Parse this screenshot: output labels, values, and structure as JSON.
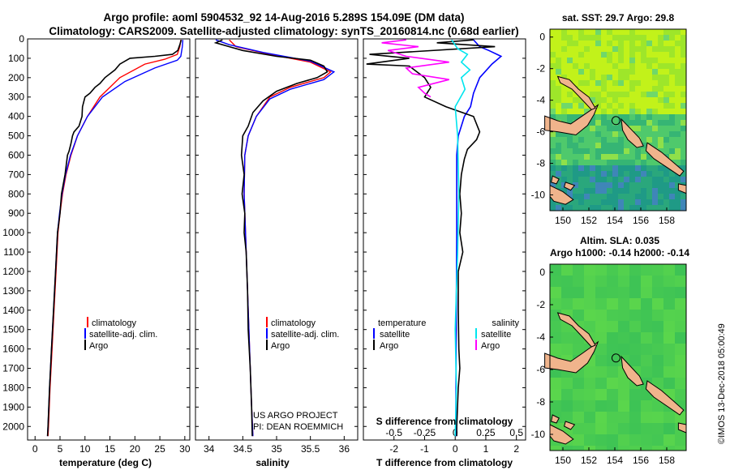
{
  "title_line1": "Argo profile: aoml 5904532_92 14-Aug-2016 5.289S 154.09E (DM data)",
  "title_line2": "Climatology: CARS2009. Satellite-adjusted climatology: synTS_20160814.nc (0.68d earlier)",
  "colors": {
    "climatology": "#ff0000",
    "satellite": "#0000ff",
    "argo": "#000000",
    "sal_sat": "#00e5ee",
    "sal_argo": "#ff00ff",
    "land": "#f0b48c"
  },
  "credits": {
    "project": "US ARGO PROJECT",
    "pi": "PI: DEAN ROEMMICH",
    "stamp": "©IMOS 13-Dec-2018 05:00:49"
  },
  "chart_data": [
    {
      "type": "line",
      "name": "temperature",
      "xlabel": "temperature (deg C)",
      "xlim": [
        -1.5,
        31
      ],
      "xticks": [
        "0",
        "5",
        "10",
        "15",
        "20",
        "25",
        "30"
      ],
      "ylim": [
        0,
        2070
      ],
      "yticks": [
        "0",
        "100",
        "200",
        "300",
        "400",
        "500",
        "600",
        "700",
        "800",
        "900",
        "1000",
        "1100",
        "1200",
        "1300",
        "1400",
        "1500",
        "1600",
        "1700",
        "1800",
        "1900",
        "2000"
      ],
      "legend": [
        "climatology",
        "satellite-adj. clim.",
        "Argo"
      ],
      "series": [
        {
          "name": "climatology",
          "color": "#ff0000",
          "points": [
            [
              29.2,
              5
            ],
            [
              29.0,
              40
            ],
            [
              28.5,
              80
            ],
            [
              26,
              105
            ],
            [
              22,
              130
            ],
            [
              17,
              200
            ],
            [
              13,
              300
            ],
            [
              10.5,
              400
            ],
            [
              8.5,
              500
            ],
            [
              7.2,
              600
            ],
            [
              6.2,
              700
            ],
            [
              5.5,
              800
            ],
            [
              5.0,
              900
            ],
            [
              4.6,
              1000
            ],
            [
              4.2,
              1200
            ],
            [
              3.8,
              1400
            ],
            [
              3.4,
              1600
            ],
            [
              3.0,
              1800
            ],
            [
              2.7,
              2000
            ],
            [
              2.6,
              2050
            ]
          ]
        },
        {
          "name": "satellite-adj. clim.",
          "color": "#0000ff",
          "points": [
            [
              29.6,
              5
            ],
            [
              29.5,
              40
            ],
            [
              29.2,
              90
            ],
            [
              28.5,
              110
            ],
            [
              24,
              150
            ],
            [
              18,
              220
            ],
            [
              13.5,
              300
            ],
            [
              10.5,
              400
            ],
            [
              8.5,
              500
            ],
            [
              7.1,
              600
            ],
            [
              6.1,
              700
            ],
            [
              5.4,
              800
            ],
            [
              4.9,
              900
            ],
            [
              4.5,
              1000
            ],
            [
              4.1,
              1200
            ],
            [
              3.7,
              1400
            ],
            [
              3.3,
              1600
            ],
            [
              2.9,
              1800
            ],
            [
              2.6,
              2000
            ],
            [
              2.5,
              2050
            ]
          ]
        },
        {
          "name": "Argo",
          "color": "#000000",
          "points": [
            [
              29.3,
              5
            ],
            [
              29.0,
              30
            ],
            [
              28.6,
              60
            ],
            [
              27.5,
              80
            ],
            [
              24,
              90
            ],
            [
              19,
              100
            ],
            [
              17,
              130
            ],
            [
              16,
              160
            ],
            [
              14,
              200
            ],
            [
              13,
              230
            ],
            [
              12,
              250
            ],
            [
              11,
              280
            ],
            [
              10,
              300
            ],
            [
              9.5,
              350
            ],
            [
              9.4,
              400
            ],
            [
              8.8,
              450
            ],
            [
              7.8,
              480
            ],
            [
              7.5,
              500
            ],
            [
              7.2,
              540
            ],
            [
              6.8,
              580
            ],
            [
              6.5,
              600
            ],
            [
              6.0,
              700
            ],
            [
              5.3,
              800
            ],
            [
              5.0,
              900
            ],
            [
              4.5,
              1000
            ],
            [
              4.1,
              1200
            ],
            [
              3.7,
              1400
            ],
            [
              3.3,
              1600
            ],
            [
              2.9,
              1800
            ],
            [
              2.6,
              2000
            ],
            [
              2.5,
              2050
            ]
          ]
        }
      ]
    },
    {
      "type": "line",
      "name": "salinity",
      "xlabel": "salinity",
      "xlim": [
        33.8,
        36.2
      ],
      "xticks": [
        "34",
        "34.5",
        "35",
        "35.5",
        "36"
      ],
      "ylim": [
        0,
        2070
      ],
      "legend": [
        "climatology",
        "satellite-adj. clim.",
        "Argo"
      ],
      "series": [
        {
          "name": "climatology",
          "color": "#ff0000",
          "points": [
            [
              34.3,
              5
            ],
            [
              34.4,
              40
            ],
            [
              34.9,
              80
            ],
            [
              35.5,
              120
            ],
            [
              35.8,
              170
            ],
            [
              35.7,
              200
            ],
            [
              35.2,
              250
            ],
            [
              34.9,
              300
            ],
            [
              34.7,
              400
            ],
            [
              34.58,
              500
            ],
            [
              34.53,
              600
            ],
            [
              34.52,
              800
            ],
            [
              34.54,
              1000
            ],
            [
              34.57,
              1300
            ],
            [
              34.6,
              1600
            ],
            [
              34.63,
              1900
            ],
            [
              34.65,
              2050
            ]
          ]
        },
        {
          "name": "satellite-adj. clim.",
          "color": "#0000ff",
          "points": [
            [
              34.1,
              5
            ],
            [
              34.3,
              30
            ],
            [
              34.8,
              70
            ],
            [
              35.5,
              115
            ],
            [
              35.85,
              170
            ],
            [
              35.7,
              210
            ],
            [
              35.2,
              260
            ],
            [
              34.9,
              310
            ],
            [
              34.7,
              400
            ],
            [
              34.58,
              500
            ],
            [
              34.53,
              600
            ],
            [
              34.52,
              800
            ],
            [
              34.54,
              1000
            ],
            [
              34.57,
              1300
            ],
            [
              34.6,
              1600
            ],
            [
              34.63,
              1900
            ],
            [
              34.65,
              2050
            ]
          ]
        },
        {
          "name": "Argo",
          "color": "#000000",
          "points": [
            [
              34.2,
              5
            ],
            [
              34.1,
              20
            ],
            [
              34.3,
              40
            ],
            [
              34.5,
              60
            ],
            [
              35.0,
              90
            ],
            [
              35.5,
              110
            ],
            [
              35.7,
              140
            ],
            [
              35.75,
              170
            ],
            [
              35.6,
              200
            ],
            [
              35.3,
              230
            ],
            [
              35.0,
              270
            ],
            [
              34.8,
              320
            ],
            [
              34.65,
              380
            ],
            [
              34.58,
              450
            ],
            [
              34.5,
              500
            ],
            [
              34.48,
              600
            ],
            [
              34.52,
              700
            ],
            [
              34.49,
              800
            ],
            [
              34.53,
              900
            ],
            [
              34.52,
              1000
            ],
            [
              34.55,
              1100
            ],
            [
              34.57,
              1300
            ],
            [
              34.58,
              1500
            ],
            [
              34.61,
              1700
            ],
            [
              34.63,
              1900
            ],
            [
              34.64,
              2050
            ]
          ]
        }
      ]
    },
    {
      "type": "line",
      "name": "difference from climatology",
      "xlabel": "T difference from climatology",
      "xlim": [
        -3,
        2.3
      ],
      "xticks": [
        "-2",
        "-1",
        "0",
        "1",
        "2"
      ],
      "top_label": "S difference from climatology",
      "top_xlim": [
        -0.75,
        0.575
      ],
      "top_xticks": [
        "-0.5",
        "-0.25",
        "0",
        "0.25",
        "0.5"
      ],
      "ylim": [
        0,
        2070
      ],
      "legend_temperature": {
        "header": "temperature",
        "items": [
          "satellite",
          "Argo"
        ]
      },
      "legend_salinity": {
        "header": "salinity",
        "items": [
          "satellite",
          "Argo"
        ]
      },
      "series": [
        {
          "name": "temperature satellite",
          "color": "#0000ff",
          "points": [
            [
              0.6,
              5
            ],
            [
              0.8,
              40
            ],
            [
              1.1,
              60
            ],
            [
              1.5,
              90
            ],
            [
              1.2,
              130
            ],
            [
              0.8,
              200
            ],
            [
              0.6,
              280
            ],
            [
              0.5,
              350
            ],
            [
              0.3,
              400
            ],
            [
              0.1,
              500
            ],
            [
              0.05,
              600
            ],
            [
              0.05,
              800
            ],
            [
              0.05,
              1000
            ],
            [
              0.04,
              1300
            ],
            [
              0.03,
              1600
            ],
            [
              0.02,
              2050
            ]
          ]
        },
        {
          "name": "temperature Argo",
          "color": "#000000",
          "points": [
            [
              0.6,
              5
            ],
            [
              -0.6,
              20
            ],
            [
              1.3,
              40
            ],
            [
              -2.8,
              80
            ],
            [
              -1.5,
              100
            ],
            [
              -2.9,
              130
            ],
            [
              -1.5,
              140
            ],
            [
              -1.0,
              200
            ],
            [
              -0.8,
              250
            ],
            [
              -1.0,
              300
            ],
            [
              -0.3,
              350
            ],
            [
              0.6,
              400
            ],
            [
              0.8,
              480
            ],
            [
              0.7,
              520
            ],
            [
              0.4,
              570
            ],
            [
              0.3,
              620
            ],
            [
              0.2,
              700
            ],
            [
              0.15,
              800
            ],
            [
              0.2,
              900
            ],
            [
              0.15,
              1000
            ],
            [
              0.25,
              1100
            ],
            [
              0.1,
              1200
            ],
            [
              0.1,
              1400
            ],
            [
              0.12,
              1600
            ],
            [
              0.15,
              1700
            ],
            [
              0.1,
              1800
            ],
            [
              0.05,
              2000
            ],
            [
              0.05,
              2050
            ]
          ]
        },
        {
          "name": "salinity satellite",
          "color": "#00e5ee",
          "points": [
            [
              -0.03,
              5
            ],
            [
              0.02,
              50
            ],
            [
              0.1,
              80
            ],
            [
              0.05,
              120
            ],
            [
              0.12,
              160
            ],
            [
              0.05,
              200
            ],
            [
              0.08,
              260
            ],
            [
              0.0,
              350
            ],
            [
              0.02,
              500
            ],
            [
              0.03,
              800
            ],
            [
              0.02,
              1100
            ],
            [
              0.0,
              1500
            ],
            [
              0.01,
              1800
            ],
            [
              0.0,
              2050
            ]
          ]
        },
        {
          "name": "salinity Argo",
          "color": "#ff00ff",
          "points": [
            [
              -0.4,
              5
            ],
            [
              -0.6,
              20
            ],
            [
              -0.3,
              40
            ],
            [
              -0.55,
              60
            ],
            [
              -0.4,
              90
            ],
            [
              -0.05,
              120
            ],
            [
              -0.4,
              150
            ],
            [
              -0.35,
              180
            ],
            [
              -0.05,
              210
            ],
            [
              -0.3,
              250
            ],
            [
              -0.25,
              280
            ],
            [
              -0.2,
              300
            ]
          ]
        }
      ]
    },
    {
      "type": "heatmap",
      "name": "sea surface temperature map",
      "title": "sat. SST: 29.7 Argo: 29.8",
      "xlim": [
        149,
        159.5
      ],
      "xticks": [
        "150",
        "152",
        "154",
        "156",
        "158"
      ],
      "ylim": [
        -11,
        0.5
      ],
      "yticks": [
        "0",
        "-2",
        "-4",
        "-6",
        "-8",
        "-10"
      ],
      "argo_marker": {
        "lon": 154.09,
        "lat": -5.289
      }
    },
    {
      "type": "heatmap",
      "name": "sea level anomaly map",
      "title_line1": "Altim. SLA: 0.035",
      "title_line2": "Argo h1000: -0.14 h2000: -0.14",
      "xlim": [
        149,
        159.5
      ],
      "xticks": [
        "150",
        "152",
        "154",
        "156",
        "158"
      ],
      "ylim": [
        -11,
        0.5
      ],
      "yticks": [
        "0",
        "-2",
        "-4",
        "-6",
        "-8",
        "-10"
      ],
      "argo_marker": {
        "lon": 154.09,
        "lat": -5.289
      }
    }
  ]
}
